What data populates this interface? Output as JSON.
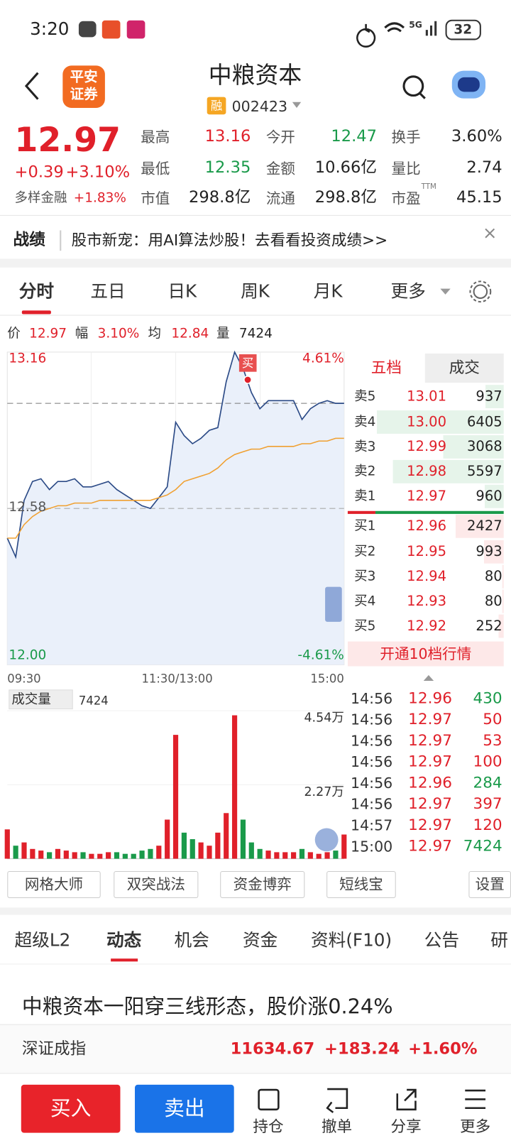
{
  "status_bar": {
    "time": "3:20",
    "network": "5G",
    "battery": "32"
  },
  "header": {
    "logo": [
      "平安",
      "证券"
    ],
    "title": "中粮资本",
    "badge": "融",
    "code": "002423"
  },
  "quote": {
    "price": "12.97",
    "change": "+0.39",
    "change_pct": "+3.10%",
    "sector": "多样金融",
    "sector_pct": "+1.83%"
  },
  "stats": [
    [
      {
        "label": "最高",
        "value": "13.16",
        "color": "#e0202a"
      },
      {
        "label": "今开",
        "value": "12.47",
        "color": "#1a9a4a"
      },
      {
        "label": "换手",
        "value": "3.60%",
        "color": "#222"
      }
    ],
    [
      {
        "label": "最低",
        "value": "12.35",
        "color": "#1a9a4a"
      },
      {
        "label": "金额",
        "value": "10.66亿",
        "color": "#222"
      },
      {
        "label": "量比",
        "value": "2.74",
        "color": "#222"
      }
    ],
    [
      {
        "label": "市值",
        "value": "298.8亿",
        "color": "#222"
      },
      {
        "label": "流通",
        "value": "298.8亿",
        "color": "#222"
      },
      {
        "label": "市盈",
        "value": "45.15",
        "color": "#222",
        "sup": "TTM"
      }
    ]
  ],
  "banner": {
    "tag": "战绩",
    "text": "股市新宠：用AI算法炒股！去看看投资成绩>>"
  },
  "tabs": [
    "分时",
    "五日",
    "日K",
    "周K",
    "月K",
    "更多"
  ],
  "info": [
    {
      "label": "价",
      "value": "12.97",
      "color": "#e0202a"
    },
    {
      "label": "幅",
      "value": "3.10%",
      "color": "#e0202a"
    },
    {
      "label": "均",
      "value": "12.84",
      "color": "#e0202a"
    },
    {
      "label": "量",
      "value": "7424",
      "color": "#222"
    }
  ],
  "chart_data": [
    {
      "type": "line",
      "ylim": [
        12,
        13.16
      ],
      "yticks": [
        13.16,
        12.58,
        {
          "value": 12,
          "label": "12.00"
        }
      ],
      "y2lim": [
        -4.61,
        4.61
      ],
      "y2ticks": [
        {
          "value": 4.61,
          "label": "4.61%"
        },
        {
          "value": -4.61,
          "label": "-4.61%"
        }
      ],
      "x_labels": [
        "09:30",
        "11:30/13:00",
        "15:00"
      ],
      "marker": "买",
      "current_line": 12.97,
      "series": [
        {
          "color": "#2b4a86",
          "values": [
            12.47,
            12.4,
            12.61,
            12.68,
            12.69,
            12.65,
            12.68,
            12.68,
            12.69,
            12.66,
            12.66,
            12.67,
            12.68,
            12.65,
            12.63,
            12.61,
            12.59,
            12.58,
            12.62,
            12.66,
            12.9,
            12.85,
            12.82,
            12.84,
            12.87,
            12.88,
            13.05,
            13.16,
            13.1,
            13.01,
            12.95,
            12.98,
            12.98,
            12.98,
            12.98,
            12.91,
            12.95,
            12.97,
            12.98,
            12.97,
            12.97
          ]
        },
        {
          "color": "#f0a030",
          "values": [
            12.47,
            12.47,
            12.52,
            12.55,
            12.57,
            12.58,
            12.59,
            12.59,
            12.6,
            12.6,
            12.6,
            12.61,
            12.61,
            12.61,
            12.61,
            12.61,
            12.61,
            12.61,
            12.62,
            12.63,
            12.65,
            12.68,
            12.69,
            12.7,
            12.71,
            12.73,
            12.76,
            12.78,
            12.79,
            12.8,
            12.8,
            12.81,
            12.81,
            12.81,
            12.81,
            12.82,
            12.82,
            12.83,
            12.83,
            12.84,
            12.84
          ]
        }
      ]
    },
    {
      "type": "bar",
      "title": "成交量",
      "ylim": [
        0,
        45400
      ],
      "yticks": [
        {
          "value": 45400,
          "label": "4.54万"
        },
        {
          "value": 22700,
          "label": "2.27万"
        }
      ],
      "up_color": "#e0202a",
      "down_color": "#1a9a4a",
      "values": [
        9000,
        4000,
        5000,
        3000,
        2500,
        2000,
        3000,
        2500,
        2000,
        2000,
        1500,
        1500,
        2000,
        2000,
        1500,
        1500,
        2500,
        3000,
        4000,
        12000,
        38000,
        8000,
        6000,
        5000,
        4000,
        8000,
        14000,
        44000,
        12000,
        5000,
        3000,
        2500,
        2000,
        2000,
        2000,
        3000,
        2000,
        1500,
        2000,
        2500,
        7424
      ]
    }
  ],
  "order_book": {
    "tabs": [
      "五档",
      "成交"
    ],
    "asks": [
      {
        "label": "卖5",
        "price": "13.01",
        "volume": "937"
      },
      {
        "label": "卖4",
        "price": "13.00",
        "volume": "6405"
      },
      {
        "label": "卖3",
        "price": "12.99",
        "volume": "3068"
      },
      {
        "label": "卖2",
        "price": "12.98",
        "volume": "5597"
      },
      {
        "label": "卖1",
        "price": "12.97",
        "volume": "960"
      }
    ],
    "bids": [
      {
        "label": "买1",
        "price": "12.96",
        "volume": "2427"
      },
      {
        "label": "买2",
        "price": "12.95",
        "volume": "993"
      },
      {
        "label": "买3",
        "price": "12.94",
        "volume": "80"
      },
      {
        "label": "买4",
        "price": "12.93",
        "volume": "80"
      },
      {
        "label": "买5",
        "price": "12.92",
        "volume": "252"
      }
    ],
    "upgrade": "开通10档行情"
  },
  "trades": [
    {
      "time": "14:56",
      "price": "12.96",
      "volume": "430",
      "color": "#1a9a4a"
    },
    {
      "time": "14:56",
      "price": "12.97",
      "volume": "50",
      "color": "#e0202a"
    },
    {
      "time": "14:56",
      "price": "12.97",
      "volume": "53",
      "color": "#e0202a"
    },
    {
      "time": "14:56",
      "price": "12.97",
      "volume": "100",
      "color": "#e0202a"
    },
    {
      "time": "14:56",
      "price": "12.96",
      "volume": "284",
      "color": "#1a9a4a"
    },
    {
      "time": "14:56",
      "price": "12.97",
      "volume": "397",
      "color": "#e0202a"
    },
    {
      "time": "14:57",
      "price": "12.97",
      "volume": "120",
      "color": "#e0202a"
    },
    {
      "time": "15:00",
      "price": "12.97",
      "volume": "7424",
      "color": "#1a9a4a"
    }
  ],
  "tools": [
    "网格大师",
    "双突战法",
    "资金博弈",
    "短线宝",
    "设置"
  ],
  "news_tabs": [
    "超级L2",
    "动态",
    "机会",
    "资金",
    "资料(F10)",
    "公告",
    "研"
  ],
  "headline": "中粮资本一阳穿三线形态，股价涨0.24%",
  "index": {
    "name": "深证成指",
    "value": "11634.67",
    "change": "+183.24",
    "pct": "+1.60%"
  },
  "footer": {
    "buy": "买入",
    "sell": "卖出",
    "actions": [
      "持仓",
      "撤单",
      "分享",
      "更多"
    ]
  }
}
